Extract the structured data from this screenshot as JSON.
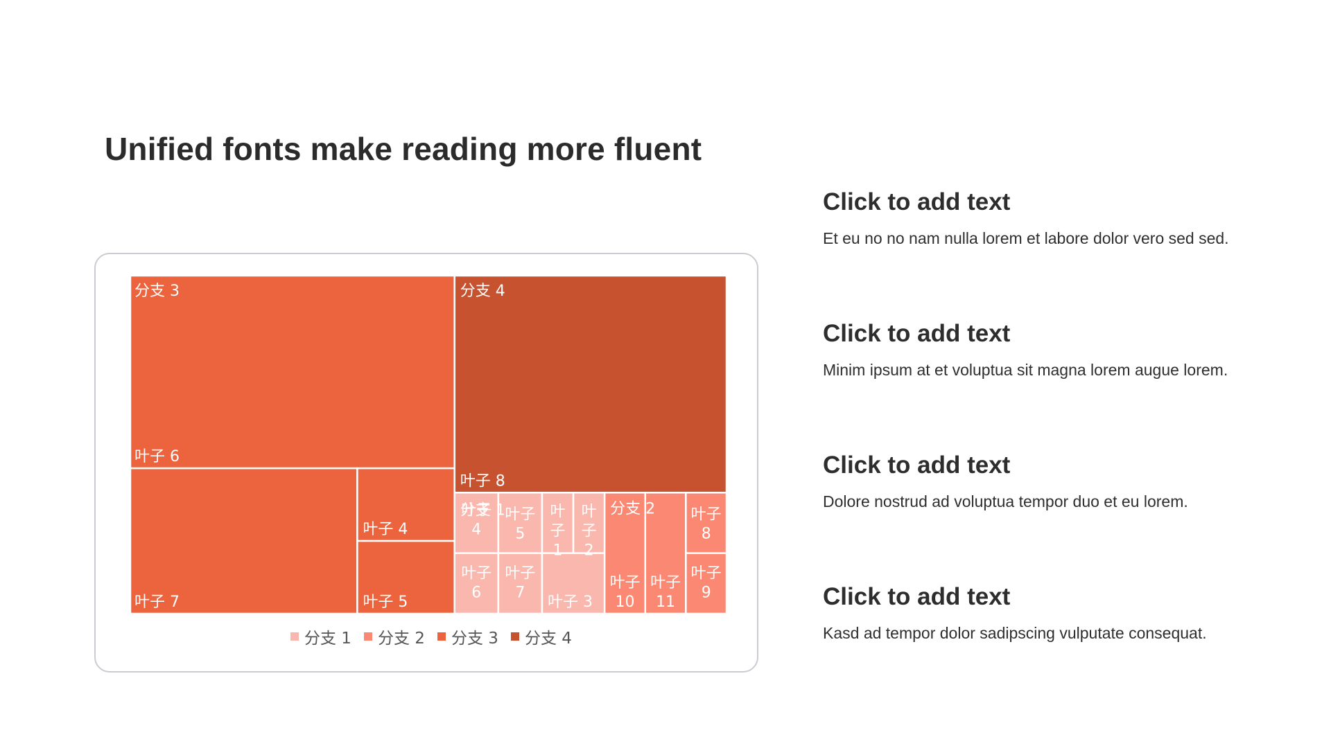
{
  "page": {
    "title": "Unified fonts make reading more fluent"
  },
  "text_blocks": [
    {
      "heading": "Click to add text",
      "body": "Et eu no no nam nulla lorem et labore dolor vero sed sed."
    },
    {
      "heading": "Click to add text",
      "body": "Minim ipsum at et voluptua sit magna lorem augue lorem."
    },
    {
      "heading": "Click to add text",
      "body": "Dolore nostrud ad voluptua tempor duo et eu lorem."
    },
    {
      "heading": "Click to add text",
      "body": "Kasd ad tempor dolor sadipscing vulputate consequat."
    }
  ],
  "colors": {
    "branch1": "#f9b7ad",
    "branch2": "#fa8872",
    "branch3": "#ec643d",
    "branch4": "#c75230",
    "border": "#c9ccd3",
    "text_dark": "#2b2b2b",
    "legend_text": "#555555"
  },
  "chart_data": {
    "type": "treemap",
    "title": "",
    "legend": {
      "position": "bottom",
      "entries": [
        "分支 1",
        "分支 2",
        "分支 3",
        "分支 4"
      ]
    },
    "branches": [
      {
        "name": "分支 1",
        "color": "#f9b7ad",
        "leaves": [
          {
            "name": "叶子 4",
            "value": 7
          },
          {
            "name": "叶子 5",
            "value": 7
          },
          {
            "name": "叶子 1",
            "value": 5
          },
          {
            "name": "叶子 2",
            "value": 5
          },
          {
            "name": "叶子 6",
            "value": 7
          },
          {
            "name": "叶子 7",
            "value": 7
          },
          {
            "name": "叶子 3",
            "value": 10
          }
        ]
      },
      {
        "name": "分支 2",
        "color": "#fa8872",
        "leaves": [
          {
            "name": "叶子 10",
            "value": 13
          },
          {
            "name": "叶子 11",
            "value": 13
          },
          {
            "name": "叶子 8",
            "value": 6.5
          },
          {
            "name": "叶子 9",
            "value": 6.5
          }
        ]
      },
      {
        "name": "分支 3",
        "color": "#ec643d",
        "leaves": [
          {
            "name": "叶子 6",
            "value": 106
          },
          {
            "name": "叶子 7",
            "value": 56
          },
          {
            "name": "叶子 4",
            "value": 12
          },
          {
            "name": "叶子 5",
            "value": 12
          }
        ]
      },
      {
        "name": "分支 4",
        "color": "#c75230",
        "leaves": [
          {
            "name": "叶子 8",
            "value": 156
          }
        ]
      }
    ]
  }
}
